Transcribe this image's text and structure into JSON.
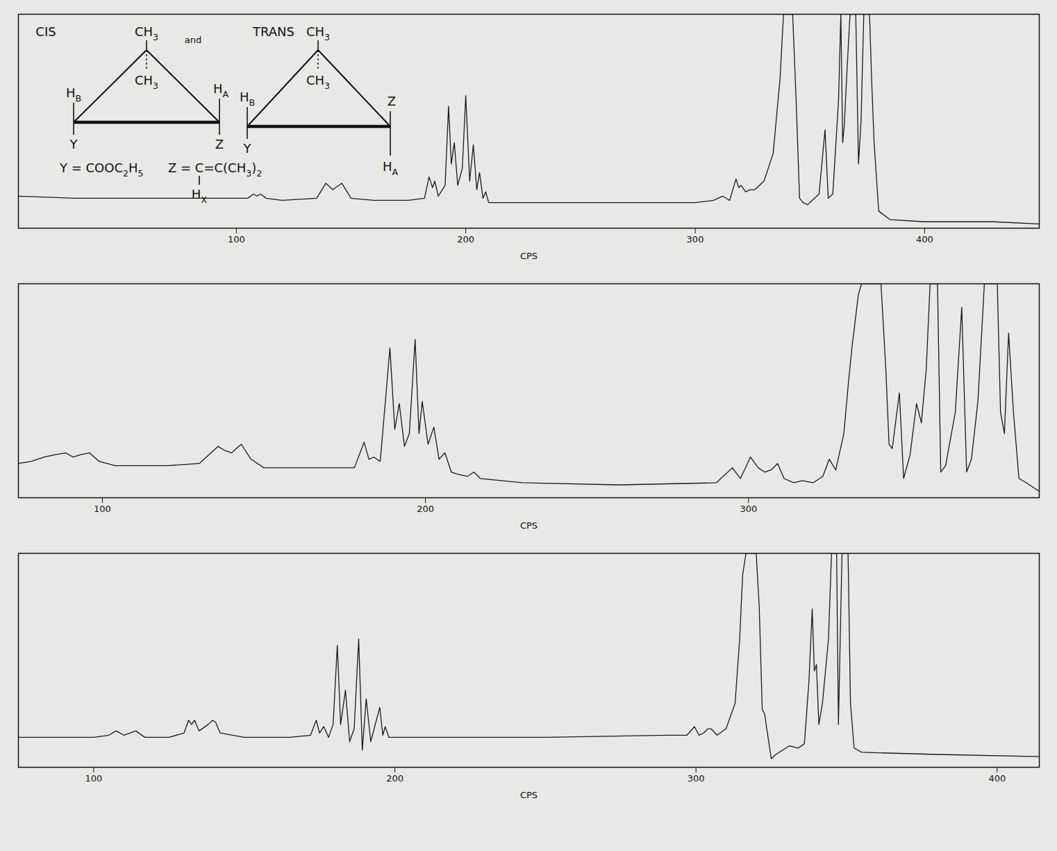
{
  "chart_data": [
    {
      "type": "line",
      "color": "#1a1a1a",
      "x_label": "CPS",
      "tick_labels": "x",
      "xlim": [
        5,
        450
      ],
      "xticks": [
        100,
        200,
        300,
        400
      ],
      "ylim": [
        0,
        100
      ],
      "x": [
        5,
        30,
        60,
        100,
        105,
        107.5,
        109,
        110.5,
        113,
        120,
        135,
        139,
        142,
        146,
        150,
        160,
        175,
        182,
        184,
        185.5,
        186.5,
        188,
        191,
        192.5,
        193.7,
        195,
        196.5,
        198.5,
        200,
        201.7,
        203.3,
        204.8,
        206,
        207.5,
        208.7,
        210,
        220,
        250,
        280,
        300,
        308,
        312,
        315,
        317.8,
        319,
        320,
        322,
        324,
        326,
        327,
        330,
        334,
        337,
        338.5,
        342.5,
        344,
        345.5,
        347,
        349,
        351,
        354,
        356.6,
        358,
        360,
        362.5,
        363.5,
        364.3,
        365,
        366,
        367.5,
        370,
        371.2,
        372.3,
        373.5,
        376,
        377,
        378,
        380,
        385,
        400,
        430,
        450
      ],
      "values": [
        15,
        14,
        14,
        14,
        14,
        16,
        15,
        16,
        14,
        13,
        14,
        21,
        18,
        21,
        14,
        13,
        13,
        14,
        24,
        19,
        22,
        15,
        20,
        57,
        30,
        40,
        20,
        28,
        62,
        22,
        39,
        18,
        26,
        14,
        17,
        12,
        12,
        12,
        12,
        12,
        13,
        15,
        13,
        23,
        19,
        20,
        17,
        18,
        18,
        19,
        22,
        35,
        70,
        100,
        100,
        60,
        14,
        12,
        11,
        13,
        16,
        46,
        14,
        16,
        60,
        100,
        40,
        48,
        70,
        100,
        100,
        30,
        50,
        100,
        100,
        67,
        40,
        8,
        4,
        3,
        3,
        2
      ]
    },
    {
      "type": "line",
      "color": "#1a1a1a",
      "x_label": "CPS",
      "tick_labels": "x",
      "xlim": [
        74,
        390
      ],
      "xticks": [
        100,
        200,
        300
      ],
      "ylim": [
        0,
        100
      ],
      "x": [
        74,
        78,
        82,
        85,
        88.6,
        91,
        93,
        96,
        99,
        104,
        120,
        130,
        135.8,
        138,
        140,
        143,
        146,
        150,
        160,
        178,
        181,
        182.5,
        184,
        186,
        189,
        190.5,
        191.9,
        193.5,
        195,
        196.8,
        198,
        199,
        200.8,
        202.6,
        204.2,
        206,
        208,
        210,
        213,
        215,
        217,
        230,
        260,
        290,
        295,
        297.5,
        300.6,
        303,
        305,
        307,
        309,
        311,
        314,
        316.7,
        320,
        323,
        325,
        327,
        329.5,
        331,
        332,
        334,
        335,
        341,
        342.5,
        343.5,
        344.5,
        345.5,
        346.7,
        348,
        350,
        352,
        353.5,
        355,
        356.2,
        358.5,
        359.5,
        361,
        364,
        366,
        367.5,
        369,
        371,
        373,
        377,
        378,
        379.2,
        380.5,
        382,
        383.7,
        386,
        390
      ],
      "values": [
        16,
        17,
        19,
        20,
        21,
        19,
        20,
        21,
        17,
        15,
        15,
        16,
        24,
        22,
        21,
        25,
        18,
        14,
        14,
        14,
        26,
        18,
        19,
        17,
        70,
        32,
        44,
        24,
        30,
        74,
        30,
        45,
        25,
        33,
        18,
        21,
        12,
        11,
        10,
        12,
        9,
        7,
        6,
        7,
        14,
        9,
        19,
        14,
        12,
        13,
        16,
        9,
        7,
        8,
        7,
        10,
        18,
        13,
        30,
        55,
        70,
        95,
        100,
        100,
        60,
        25,
        23,
        35,
        49,
        9,
        20,
        44,
        35,
        60,
        100,
        100,
        12,
        15,
        40,
        89,
        12,
        18,
        45,
        100,
        100,
        40,
        30,
        77,
        40,
        9,
        7,
        3
      ]
    },
    {
      "type": "line",
      "color": "#1a1a1a",
      "x_label": "CPS",
      "tick_labels": "x",
      "xlim": [
        75,
        414
      ],
      "xticks": [
        100,
        200,
        300,
        400
      ],
      "ylim": [
        0,
        100
      ],
      "x": [
        75,
        90,
        100,
        105,
        107.5,
        110,
        114,
        117,
        125,
        130,
        131.5,
        132.5,
        133.5,
        135,
        138,
        139.5,
        140.5,
        142,
        150,
        165,
        172,
        173.9,
        175,
        176.4,
        178,
        179.5,
        180.9,
        182,
        183.6,
        185,
        186.5,
        188,
        189.2,
        190.5,
        192,
        195,
        196,
        196.8,
        198,
        210,
        250,
        290,
        297,
        299.5,
        301,
        302.5,
        304,
        305,
        307,
        310,
        313,
        314.5,
        315.5,
        316.6,
        320,
        321,
        322,
        322.8,
        323.4,
        325,
        326.5,
        331,
        334,
        336,
        337.5,
        338.6,
        339.3,
        340,
        340.8,
        342,
        344,
        345,
        346.7,
        347.3,
        348.5,
        350.5,
        351.3,
        352.5,
        355,
        380,
        414
      ],
      "values": [
        14,
        14,
        14,
        15,
        17,
        15,
        17,
        14,
        14,
        16,
        22,
        20,
        22,
        17,
        20,
        22,
        21,
        16,
        14,
        14,
        15,
        22,
        16,
        19,
        14,
        20,
        57,
        20,
        36,
        12,
        18,
        60,
        8,
        32,
        12,
        28,
        15,
        19,
        14,
        14,
        14,
        15,
        15,
        19,
        15,
        16,
        18,
        18,
        15,
        18,
        30,
        60,
        90,
        100,
        100,
        75,
        27,
        25,
        19,
        4,
        6,
        10,
        9,
        11,
        40,
        74,
        45,
        48,
        20,
        30,
        60,
        100,
        100,
        20,
        100,
        100,
        30,
        9,
        7,
        6,
        5
      ]
    }
  ],
  "structure": {
    "cis": {
      "name": "CIS",
      "top_methyl": [
        {
          "t": "CH"
        },
        {
          "s": "3"
        }
      ],
      "bottom_methyl": [
        {
          "t": "CH"
        },
        {
          "s": "3"
        }
      ],
      "left_top": [
        {
          "t": "H"
        },
        {
          "s": "B"
        }
      ],
      "left_bottom": [
        {
          "t": "Y"
        }
      ],
      "right_top": [
        {
          "t": "H"
        },
        {
          "s": "A"
        }
      ],
      "right_bottom": [
        {
          "t": "Z"
        }
      ]
    },
    "joiner": "and",
    "trans": {
      "name": "TRANS",
      "top_methyl": [
        {
          "t": "CH"
        },
        {
          "s": "3"
        }
      ],
      "bottom_methyl": [
        {
          "t": "CH"
        },
        {
          "s": "3"
        }
      ],
      "left_top": [
        {
          "t": "H"
        },
        {
          "s": "B"
        }
      ],
      "left_bottom": [
        {
          "t": "Y"
        }
      ],
      "right_top": [
        {
          "t": "Z"
        }
      ],
      "right_bottom": [
        {
          "t": "H"
        },
        {
          "s": "A"
        }
      ]
    },
    "y_definition": [
      {
        "t": "Y = COOC"
      },
      {
        "s": "2"
      },
      {
        "t": "H"
      },
      {
        "s": "5"
      }
    ],
    "z_definition": [
      {
        "t": "Z = C"
      },
      {
        "t": "=C(CH"
      },
      {
        "s": "3"
      },
      {
        "t": ")"
      },
      {
        "s": "2"
      }
    ],
    "z_hydrogen": [
      {
        "t": "H"
      },
      {
        "s": "X"
      }
    ]
  }
}
